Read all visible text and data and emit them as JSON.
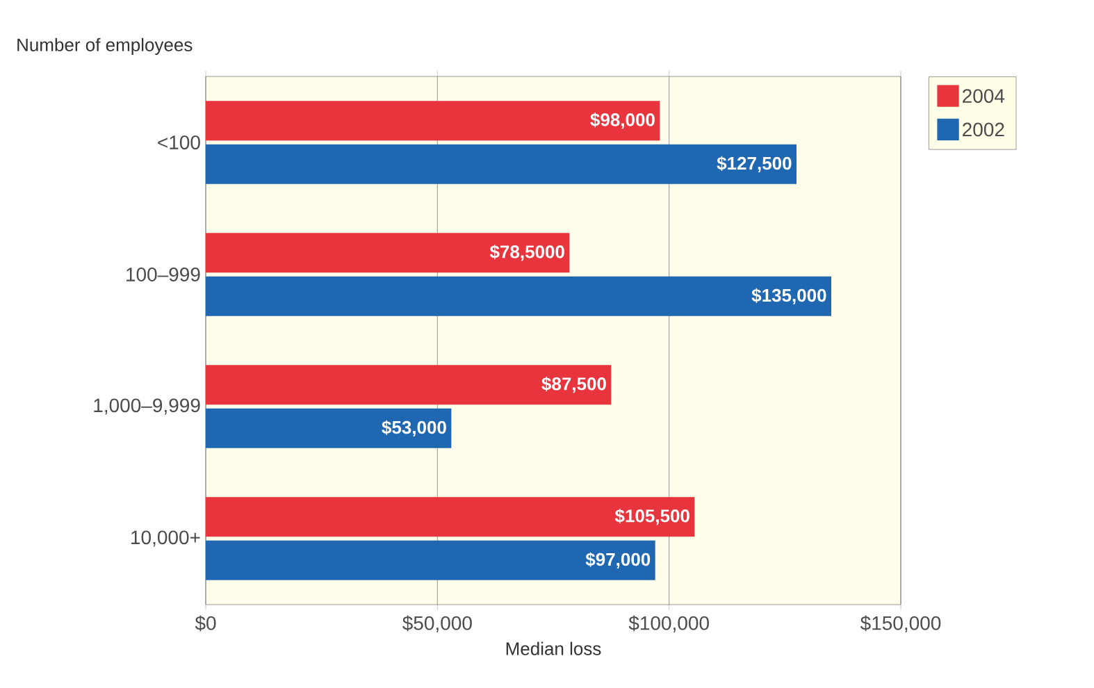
{
  "chart_data": {
    "type": "bar",
    "orientation": "horizontal",
    "xlabel": "Median loss",
    "ylabel": "Number of employees",
    "categories": [
      "<100",
      "100–999",
      "1,000–9,999",
      "10,000+"
    ],
    "series": [
      {
        "name": "2004",
        "color": "#e8343c",
        "values": [
          98000,
          78500,
          87500,
          105500
        ],
        "value_labels": [
          "$98,000",
          "$78,5000",
          "$87,500",
          "$105,500"
        ]
      },
      {
        "name": "2002",
        "color": "#1f67b1",
        "values": [
          127500,
          135000,
          53000,
          97000
        ],
        "value_labels": [
          "$127,500",
          "$135,000",
          "$53,000",
          "$97,000"
        ]
      }
    ],
    "xlim": [
      0,
      150000
    ],
    "xticks": [
      {
        "value": 0,
        "label": "$0"
      },
      {
        "value": 50000,
        "label": "$50,000"
      },
      {
        "value": 100000,
        "label": "$100,000"
      },
      {
        "value": 150000,
        "label": "$150,000"
      }
    ],
    "grid": "x",
    "legend": "top right"
  }
}
